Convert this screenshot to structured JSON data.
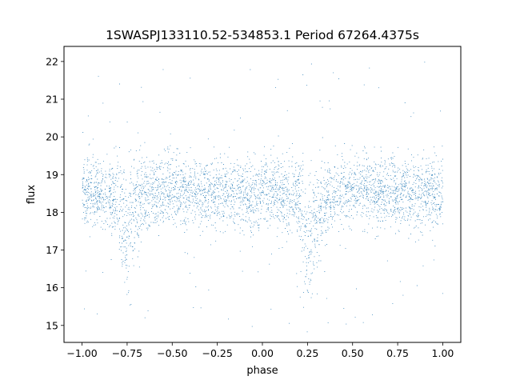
{
  "chart_data": {
    "type": "scatter",
    "title": "1SWASPJ133110.52-534853.1 Period 67264.4375s",
    "xlabel": "phase",
    "ylabel": "flux",
    "xlim": [
      -1.1,
      1.1
    ],
    "ylim": [
      14.55,
      22.4
    ],
    "xticks": [
      -1.0,
      -0.75,
      -0.5,
      -0.25,
      0.0,
      0.25,
      0.5,
      0.75,
      1.0
    ],
    "xtick_labels": [
      "−1.00",
      "−0.75",
      "−0.50",
      "−0.25",
      "0.00",
      "0.25",
      "0.50",
      "0.75",
      "1.00"
    ],
    "yticks": [
      15,
      16,
      17,
      18,
      19,
      20,
      21,
      22
    ],
    "ytick_labels": [
      "15",
      "16",
      "17",
      "18",
      "19",
      "20",
      "21",
      "22"
    ],
    "grid": false,
    "legend": "none",
    "marker_color": "#1f77b4",
    "series": [
      {
        "description_points": "phase-folded light curve; dense band of points spanning phase -1 to 1",
        "x": [
          -1.0,
          -0.9,
          -0.85,
          -0.8,
          -0.78,
          -0.76,
          -0.74,
          -0.72,
          -0.7,
          -0.65,
          -0.5,
          -0.35,
          -0.25,
          -0.15,
          0.0,
          0.1,
          0.15,
          0.2,
          0.22,
          0.24,
          0.26,
          0.28,
          0.3,
          0.35,
          0.5,
          0.65,
          0.75,
          0.85,
          1.0
        ],
        "y_median": [
          18.5,
          18.5,
          18.45,
          18.3,
          18.0,
          17.5,
          17.6,
          18.0,
          18.3,
          18.45,
          18.6,
          18.5,
          18.5,
          18.5,
          18.45,
          18.45,
          18.4,
          18.3,
          18.0,
          17.4,
          17.3,
          17.6,
          18.0,
          18.4,
          18.6,
          18.55,
          18.5,
          18.5,
          18.5
        ],
        "band_low": [
          17.6,
          17.6,
          17.5,
          16.8,
          16.2,
          15.9,
          16.0,
          16.4,
          17.0,
          17.6,
          17.7,
          17.7,
          17.6,
          17.6,
          17.6,
          17.6,
          17.5,
          17.2,
          16.5,
          16.0,
          15.9,
          16.1,
          16.8,
          17.5,
          17.7,
          17.7,
          17.6,
          17.6,
          17.6
        ],
        "band_high": [
          19.4,
          19.4,
          19.4,
          19.3,
          19.3,
          19.2,
          19.2,
          19.3,
          19.4,
          19.5,
          19.5,
          19.4,
          19.4,
          19.4,
          19.4,
          19.4,
          19.4,
          19.3,
          19.3,
          19.2,
          19.2,
          19.3,
          19.4,
          19.4,
          19.5,
          19.5,
          19.4,
          19.4,
          19.4
        ]
      }
    ]
  }
}
